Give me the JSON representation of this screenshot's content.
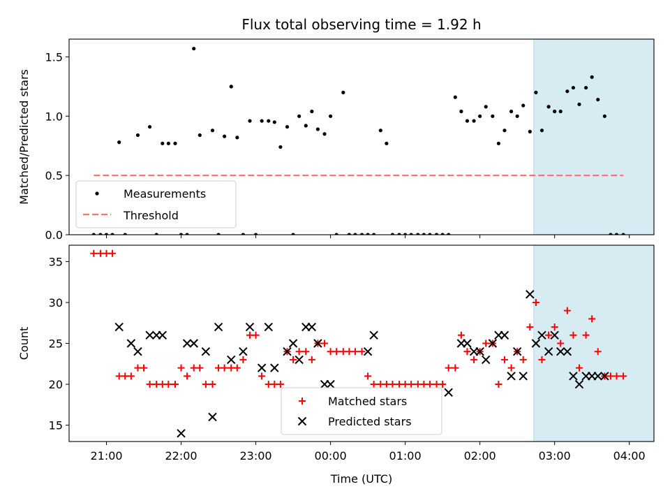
{
  "figure": {
    "title": "Flux total observing time = 1.92 h"
  },
  "chart_data": [
    {
      "type": "scatter",
      "ylabel": "Matched/Predicted stars",
      "ylim": [
        0,
        1.65
      ],
      "yticks": [
        "0.0",
        "0.5",
        "1.0",
        "1.5"
      ],
      "xlim": [
        20.5,
        28.33
      ],
      "shaded_span": [
        26.72,
        28.63
      ],
      "threshold": {
        "x": [
          20.83,
          27.92
        ],
        "y": 0.5,
        "color": "#ff7373"
      },
      "legend": {
        "position": "lower-left",
        "items": [
          "Measurements",
          "Threshold"
        ]
      },
      "series": [
        {
          "name": "Measurements",
          "color": "#000000",
          "x": [
            20.83,
            20.92,
            21.0,
            21.08,
            21.17,
            21.25,
            21.42,
            21.58,
            21.67,
            21.75,
            21.83,
            21.92,
            22.0,
            22.08,
            22.17,
            22.25,
            22.42,
            22.5,
            22.58,
            22.67,
            22.75,
            22.83,
            22.92,
            23.0,
            23.08,
            23.17,
            23.25,
            23.33,
            23.42,
            23.5,
            23.58,
            23.67,
            23.75,
            23.83,
            23.92,
            24.0,
            24.08,
            24.17,
            24.25,
            24.33,
            24.42,
            24.5,
            24.58,
            24.67,
            24.75,
            24.83,
            24.92,
            25.0,
            25.08,
            25.17,
            25.25,
            25.33,
            25.42,
            25.5,
            25.58,
            25.67,
            25.75,
            25.83,
            25.92,
            26.0,
            26.08,
            26.17,
            26.25,
            26.33,
            26.42,
            26.5,
            26.58,
            26.67,
            26.75,
            26.83,
            26.92,
            27.0,
            27.08,
            27.17,
            27.25,
            27.33,
            27.42,
            27.5,
            27.58,
            27.67,
            27.75,
            27.83,
            27.92
          ],
          "y": [
            0,
            0,
            0,
            0,
            0.78,
            0,
            0.84,
            0.91,
            0,
            0.77,
            0.77,
            0.77,
            0,
            0,
            1.57,
            0.84,
            0.88,
            0,
            0.83,
            1.25,
            0.82,
            0,
            0.96,
            0,
            0.96,
            0.96,
            0.95,
            0.74,
            0.91,
            0,
            1.0,
            0.92,
            1.04,
            0.89,
            0.85,
            1.0,
            0,
            1.2,
            0,
            0,
            0,
            0,
            0,
            0.88,
            0.77,
            0,
            0,
            0,
            0,
            0,
            0,
            0,
            0,
            0,
            0,
            1.16,
            1.04,
            0.96,
            0.96,
            1.0,
            1.08,
            1.0,
            0.77,
            0.88,
            1.04,
            1.0,
            1.09,
            0.87,
            1.2,
            0.88,
            1.08,
            1.04,
            1.04,
            1.21,
            1.24,
            1.1,
            1.24,
            1.33,
            1.14,
            1.0,
            0,
            0,
            0
          ]
        }
      ]
    },
    {
      "type": "scatter",
      "ylabel": "Count",
      "xlabel": "Time (UTC)",
      "ylim": [
        13,
        37
      ],
      "yticks": [
        "15",
        "20",
        "25",
        "30",
        "35"
      ],
      "xlim": [
        20.5,
        28.33
      ],
      "xticks": [
        "21:00",
        "22:00",
        "23:00",
        "00:00",
        "01:00",
        "02:00",
        "03:00",
        "04:00"
      ],
      "shaded_span": [
        26.72,
        28.63
      ],
      "legend": {
        "position": "lower-center",
        "items": [
          "Matched stars",
          "Predicted stars"
        ]
      },
      "series": [
        {
          "name": "Matched stars",
          "color": "#ff0000",
          "x": [
            20.83,
            20.92,
            21.0,
            21.08,
            21.17,
            21.25,
            21.33,
            21.42,
            21.5,
            21.58,
            21.67,
            21.75,
            21.83,
            21.92,
            22.0,
            22.08,
            22.17,
            22.25,
            22.33,
            22.42,
            22.5,
            22.58,
            22.67,
            22.75,
            22.83,
            22.92,
            23.0,
            23.08,
            23.17,
            23.25,
            23.33,
            23.42,
            23.5,
            23.58,
            23.67,
            23.75,
            23.83,
            23.92,
            24.0,
            24.08,
            24.17,
            24.25,
            24.33,
            24.42,
            24.5,
            24.58,
            24.67,
            24.75,
            24.83,
            24.92,
            25.0,
            25.08,
            25.17,
            25.25,
            25.33,
            25.42,
            25.5,
            25.58,
            25.67,
            25.75,
            25.83,
            25.92,
            26.0,
            26.08,
            26.17,
            26.25,
            26.33,
            26.42,
            26.5,
            26.58,
            26.67,
            26.75,
            26.83,
            26.92,
            27.0,
            27.08,
            27.17,
            27.25,
            27.33,
            27.42,
            27.5,
            27.58,
            27.67,
            27.75,
            27.83,
            27.92
          ],
          "y": [
            36,
            36,
            36,
            36,
            21,
            21,
            21,
            22,
            22,
            20,
            20,
            20,
            20,
            20,
            22,
            21,
            22,
            22,
            20,
            20,
            22,
            22,
            22,
            22,
            23,
            26,
            26,
            21,
            20,
            20,
            20,
            24,
            23,
            24,
            24,
            23,
            25,
            25,
            24,
            24,
            24,
            24,
            24,
            24,
            21,
            20,
            20,
            20,
            20,
            20,
            20,
            20,
            20,
            20,
            20,
            20,
            20,
            22,
            22,
            26,
            24,
            23,
            24,
            25,
            25,
            20,
            23,
            22,
            24,
            23,
            27,
            30,
            23,
            26,
            27,
            25,
            29,
            26,
            22,
            26,
            28,
            24,
            21,
            21,
            21,
            21
          ]
        },
        {
          "name": "Predicted stars",
          "color": "#000000",
          "x": [
            21.17,
            21.33,
            21.42,
            21.58,
            21.67,
            21.75,
            22.0,
            22.08,
            22.17,
            22.33,
            22.42,
            22.5,
            22.67,
            22.83,
            22.92,
            23.08,
            23.17,
            23.25,
            23.42,
            23.5,
            23.58,
            23.67,
            23.75,
            23.83,
            23.92,
            24.0,
            24.5,
            24.58,
            25.58,
            25.75,
            25.83,
            25.92,
            26.0,
            26.08,
            26.17,
            26.25,
            26.33,
            26.42,
            26.5,
            26.58,
            26.67,
            26.75,
            26.83,
            26.92,
            27.0,
            27.08,
            27.17,
            27.25,
            27.33,
            27.42,
            27.5,
            27.58,
            27.67
          ],
          "y": [
            27,
            25,
            24,
            26,
            26,
            26,
            14,
            25,
            25,
            24,
            16,
            27,
            23,
            24,
            27,
            22,
            27,
            22,
            24,
            25,
            23,
            27,
            27,
            25,
            20,
            20,
            24,
            26,
            19,
            25,
            25,
            24,
            24,
            23,
            25,
            26,
            26,
            21,
            24,
            21,
            31,
            25,
            26,
            24,
            26,
            24,
            24,
            21,
            20,
            21,
            21,
            21,
            21
          ]
        }
      ]
    }
  ]
}
